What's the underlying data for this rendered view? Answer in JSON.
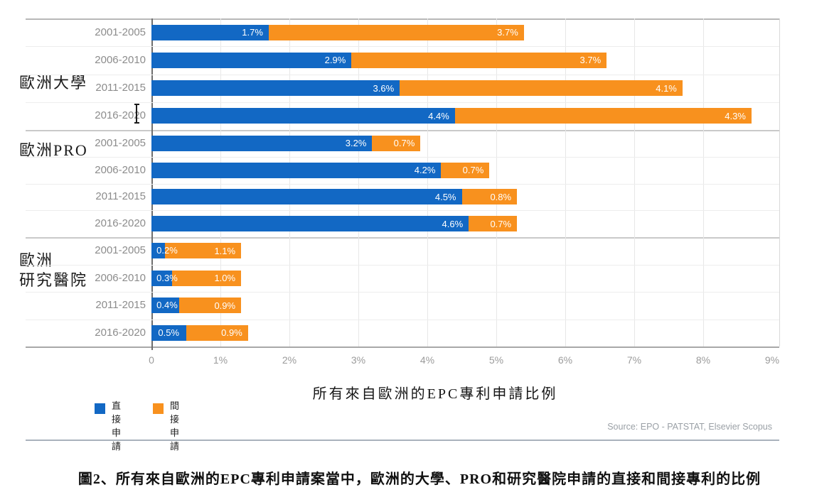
{
  "figure": {
    "source_note": "Source: EPO - PATSTAT, Elsevier Scopus",
    "caption": "圖2、所有來自歐洲的EPC專利申請案當中，歐洲的大學、PRO和研究醫院申請的直接和間接專利的比例"
  },
  "colors": {
    "direct_blue": "#1268C4",
    "indirect_orange": "#F8911E",
    "axis_text_gray": "#9B9B9B",
    "category_text_gray": "#8C8C8C"
  },
  "chart_data": {
    "type": "bar",
    "orientation": "horizontal",
    "stacked": true,
    "unit": "%",
    "xlim": [
      0,
      9
    ],
    "grid": true,
    "x_ticks": [
      "0",
      "1%",
      "2%",
      "3%",
      "4%",
      "5%",
      "6%",
      "7%",
      "8%",
      "9%"
    ],
    "xlabel": "所有來自歐洲的EPC專利申請比例",
    "legend_position": "bottom-left",
    "legend": [
      {
        "name": "直接申請",
        "label_lines": [
          "直接",
          "申請"
        ],
        "color": "#1268C4"
      },
      {
        "name": "間接申請",
        "label_lines": [
          "間接",
          "申請"
        ],
        "color": "#F8911E"
      }
    ],
    "series_names": [
      "直接申請",
      "間接申請"
    ],
    "groups": [
      {
        "group_label_lines": [
          "歐洲大學"
        ],
        "rows": [
          {
            "period": "2001-2005",
            "direct": 1.7,
            "indirect": 3.7
          },
          {
            "period": "2006-2010",
            "direct": 2.9,
            "indirect": 3.7
          },
          {
            "period": "2011-2015",
            "direct": 3.6,
            "indirect": 4.1
          },
          {
            "period": "2016-2020",
            "direct": 4.4,
            "indirect": 4.3
          }
        ]
      },
      {
        "group_label_lines": [
          "歐洲PRO"
        ],
        "rows": [
          {
            "period": "2001-2005",
            "direct": 3.2,
            "indirect": 0.7
          },
          {
            "period": "2006-2010",
            "direct": 4.2,
            "indirect": 0.7
          },
          {
            "period": "2011-2015",
            "direct": 4.5,
            "indirect": 0.8
          },
          {
            "period": "2016-2020",
            "direct": 4.6,
            "indirect": 0.7
          }
        ]
      },
      {
        "group_label_lines": [
          "歐洲",
          "研究醫院"
        ],
        "rows": [
          {
            "period": "2001-2005",
            "direct": 0.2,
            "indirect": 1.1
          },
          {
            "period": "2006-2010",
            "direct": 0.3,
            "indirect": 1.0
          },
          {
            "period": "2011-2015",
            "direct": 0.4,
            "indirect": 0.9
          },
          {
            "period": "2016-2020",
            "direct": 0.5,
            "indirect": 0.9
          }
        ]
      }
    ]
  }
}
